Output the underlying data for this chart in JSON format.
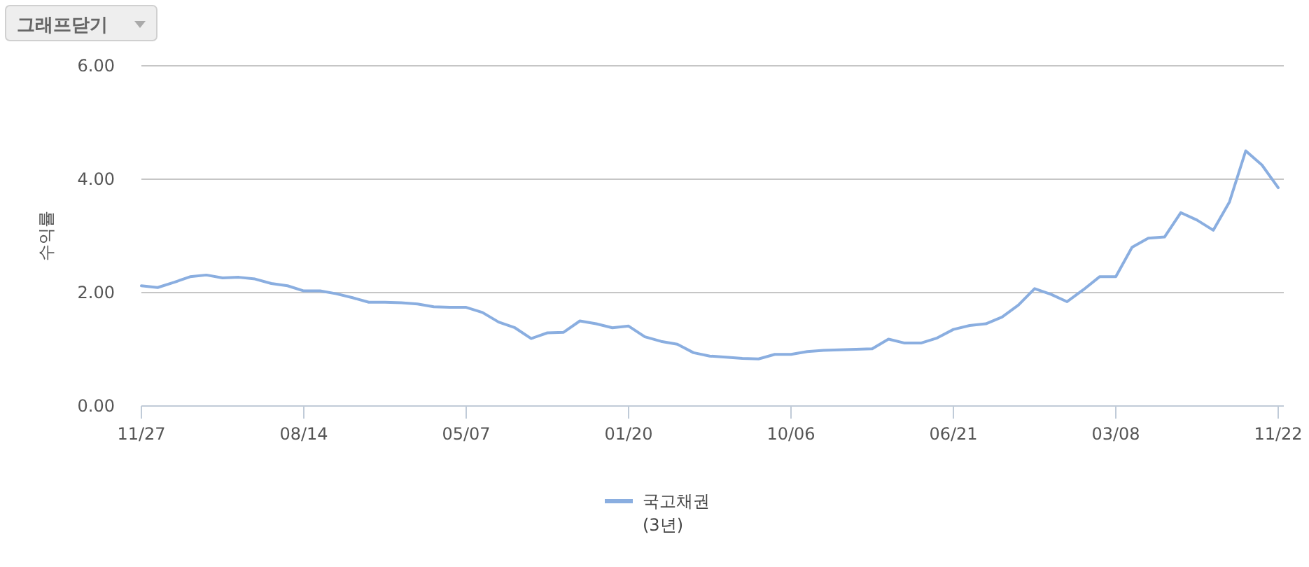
{
  "chart_data": {
    "type": "line",
    "ylabel": "수익률",
    "annotations": [
      "그래프닫기"
    ],
    "categories": [
      "11/27",
      null,
      null,
      null,
      null,
      null,
      null,
      null,
      null,
      null,
      "08/14",
      null,
      null,
      null,
      null,
      null,
      null,
      null,
      null,
      null,
      "05/07",
      null,
      null,
      null,
      null,
      null,
      null,
      null,
      null,
      null,
      "01/20",
      null,
      null,
      null,
      null,
      null,
      null,
      null,
      null,
      null,
      "10/06",
      null,
      null,
      null,
      null,
      null,
      null,
      null,
      null,
      null,
      "06/21",
      null,
      null,
      null,
      null,
      null,
      null,
      null,
      null,
      null,
      "03/08",
      null,
      null,
      null,
      null,
      null,
      null,
      null,
      null,
      null,
      "11/22"
    ],
    "series": [
      {
        "name": "국고채권 (3년)",
        "color": "#8aaee0",
        "values": [
          2.12,
          2.09,
          2.18,
          2.28,
          2.31,
          2.26,
          2.27,
          2.24,
          2.16,
          2.12,
          2.03,
          2.03,
          1.98,
          1.91,
          1.83,
          1.83,
          1.82,
          1.8,
          1.75,
          1.74,
          1.74,
          1.65,
          1.48,
          1.38,
          1.19,
          1.29,
          1.3,
          1.5,
          1.45,
          1.38,
          1.41,
          1.22,
          1.14,
          1.09,
          0.94,
          0.88,
          0.86,
          0.84,
          0.83,
          0.91,
          0.91,
          0.96,
          0.98,
          0.99,
          1.0,
          1.01,
          1.18,
          1.11,
          1.11,
          1.2,
          1.35,
          1.42,
          1.45,
          1.57,
          1.78,
          2.07,
          1.97,
          1.84,
          2.05,
          2.28,
          2.28,
          2.8,
          2.96,
          2.98,
          3.41,
          3.28,
          3.1,
          3.6,
          4.5,
          4.25,
          3.85
        ]
      }
    ],
    "ylim": [
      0,
      6
    ],
    "yticks": [
      {
        "value": 0,
        "label": "0.00"
      },
      {
        "value": 2,
        "label": "2.00"
      },
      {
        "value": 4,
        "label": "4.00"
      },
      {
        "value": 6,
        "label": "6.00"
      }
    ],
    "grid": "y",
    "legend": "bottom",
    "marker": "none",
    "line_style": "solid"
  }
}
